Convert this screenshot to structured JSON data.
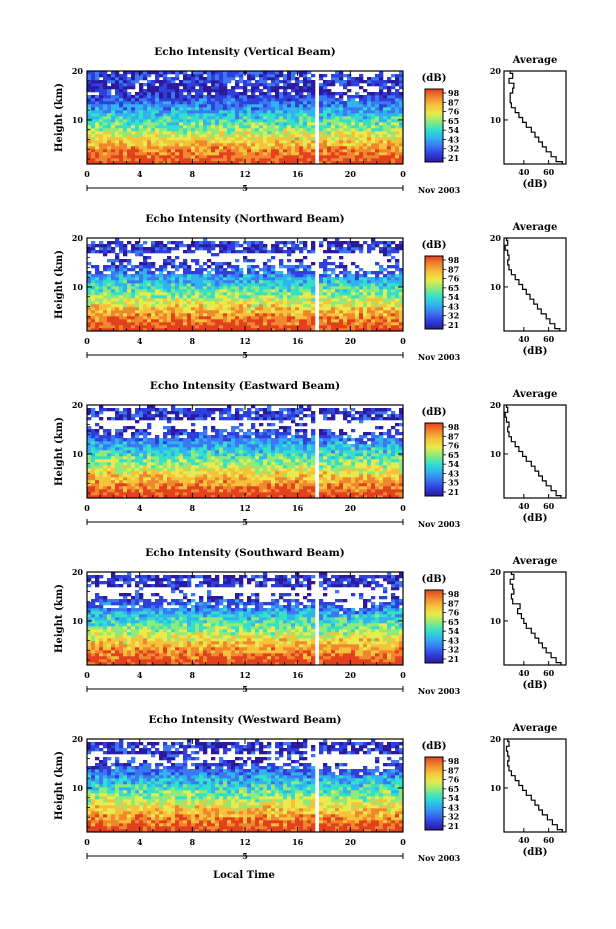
{
  "figure": {
    "x_label": "Local Time",
    "y_label": "Height (km)",
    "date_label": "Nov 2003",
    "colorbar_unit": "(dB)",
    "avg_title": "Average",
    "avg_xlabel": "(dB)"
  },
  "colormap": [
    "#2b1a9e",
    "#2f3fdc",
    "#3b78f2",
    "#2fb4f0",
    "#35e0c9",
    "#8fea7a",
    "#e8ea4e",
    "#f5c23a",
    "#f0872f",
    "#e3401e"
  ],
  "chart_data": [
    {
      "type": "heatmap",
      "title": "Echo Intensity (Vertical Beam)",
      "x_ticks": [
        "0",
        "4",
        "8",
        "12",
        "16",
        "20",
        "0"
      ],
      "day_marker": "5",
      "y_ticks": [
        "10",
        "20"
      ],
      "xlim": [
        0,
        24
      ],
      "ylim": [
        1,
        20
      ],
      "gap_hours": [
        17.2,
        17.5
      ],
      "colorbar_levels": [
        "98",
        "87",
        "76",
        "65",
        "54",
        "43",
        "32",
        "21"
      ],
      "avg_x_ticks": [
        "40",
        "60"
      ],
      "avg_ylim": [
        1,
        20
      ],
      "avg_profile": {
        "height_km": [
          1,
          2,
          3,
          4,
          5,
          6,
          7,
          8,
          9,
          10,
          11,
          12,
          13,
          14,
          15,
          16,
          17,
          18,
          19,
          20
        ],
        "db": [
          71,
          66,
          62,
          58,
          55,
          52,
          49,
          46,
          42,
          39,
          36,
          33,
          30,
          29,
          29,
          31,
          32,
          28,
          31,
          29
        ]
      }
    },
    {
      "type": "heatmap",
      "title": "Echo Intensity (Northward Beam)",
      "x_ticks": [
        "0",
        "4",
        "8",
        "12",
        "16",
        "20",
        "0"
      ],
      "day_marker": "5",
      "y_ticks": [
        "10",
        "20"
      ],
      "xlim": [
        0,
        24
      ],
      "ylim": [
        1,
        20
      ],
      "gap_hours": [
        17.2,
        17.5
      ],
      "colorbar_levels": [
        "98",
        "87",
        "76",
        "65",
        "54",
        "43",
        "32",
        "21"
      ],
      "avg_x_ticks": [
        "40",
        "60"
      ],
      "avg_ylim": [
        1,
        20
      ],
      "avg_profile": {
        "height_km": [
          1,
          2,
          3,
          4,
          5,
          6,
          7,
          8,
          9,
          10,
          11,
          12,
          13,
          14,
          15,
          16,
          17,
          18,
          19,
          20
        ],
        "db": [
          69,
          65,
          61,
          58,
          54,
          51,
          48,
          45,
          42,
          39,
          36,
          33,
          30,
          28,
          27,
          28,
          27,
          25,
          27,
          26
        ]
      }
    },
    {
      "type": "heatmap",
      "title": "Echo Intensity (Eastward Beam)",
      "x_ticks": [
        "0",
        "4",
        "8",
        "12",
        "16",
        "20",
        "0"
      ],
      "day_marker": "5",
      "y_ticks": [
        "10",
        "20"
      ],
      "xlim": [
        0,
        24
      ],
      "ylim": [
        1,
        20
      ],
      "gap_hours": [
        17.2,
        17.5
      ],
      "colorbar_levels": [
        "98",
        "87",
        "76",
        "65",
        "54",
        "43",
        "35",
        "21"
      ],
      "avg_x_ticks": [
        "40",
        "60"
      ],
      "avg_ylim": [
        1,
        20
      ],
      "avg_profile": {
        "height_km": [
          1,
          2,
          3,
          4,
          5,
          6,
          7,
          8,
          9,
          10,
          11,
          12,
          13,
          14,
          15,
          16,
          17,
          18,
          19,
          20
        ],
        "db": [
          70,
          66,
          62,
          58,
          55,
          52,
          49,
          46,
          42,
          39,
          36,
          33,
          30,
          28,
          27,
          28,
          26,
          25,
          27,
          26
        ]
      }
    },
    {
      "type": "heatmap",
      "title": "Echo Intensity (Southward Beam)",
      "x_ticks": [
        "0",
        "4",
        "8",
        "12",
        "16",
        "20",
        "0"
      ],
      "day_marker": "5",
      "y_ticks": [
        "10",
        "20"
      ],
      "xlim": [
        0,
        24
      ],
      "ylim": [
        1,
        20
      ],
      "gap_hours": [
        17.2,
        17.5
      ],
      "colorbar_levels": [
        "98",
        "87",
        "76",
        "65",
        "54",
        "43",
        "32",
        "21"
      ],
      "avg_x_ticks": [
        "40",
        "60"
      ],
      "avg_ylim": [
        1,
        20
      ],
      "avg_profile": {
        "height_km": [
          1,
          2,
          3,
          4,
          5,
          6,
          7,
          8,
          9,
          10,
          11,
          12,
          13,
          14,
          15,
          16,
          17,
          18,
          19,
          20
        ],
        "db": [
          70,
          66,
          62,
          58,
          55,
          52,
          49,
          46,
          42,
          40,
          38,
          35,
          37,
          31,
          30,
          32,
          31,
          29,
          32,
          30
        ]
      }
    },
    {
      "type": "heatmap",
      "title": "Echo Intensity (Westward Beam)",
      "x_ticks": [
        "0",
        "4",
        "8",
        "12",
        "16",
        "20",
        "0"
      ],
      "day_marker": "5",
      "y_ticks": [
        "10",
        "20"
      ],
      "xlim": [
        0,
        24
      ],
      "ylim": [
        1,
        20
      ],
      "gap_hours": [
        17.2,
        17.5
      ],
      "colorbar_levels": [
        "98",
        "87",
        "76",
        "65",
        "54",
        "43",
        "32",
        "21"
      ],
      "avg_x_ticks": [
        "40",
        "60"
      ],
      "avg_ylim": [
        1,
        20
      ],
      "avg_profile": {
        "height_km": [
          1,
          2,
          3,
          4,
          5,
          6,
          7,
          8,
          9,
          10,
          11,
          12,
          13,
          14,
          15,
          16,
          17,
          18,
          19,
          20
        ],
        "db": [
          71,
          67,
          63,
          59,
          55,
          52,
          49,
          46,
          42,
          39,
          36,
          33,
          30,
          28,
          27,
          28,
          27,
          26,
          28,
          27
        ]
      }
    }
  ]
}
